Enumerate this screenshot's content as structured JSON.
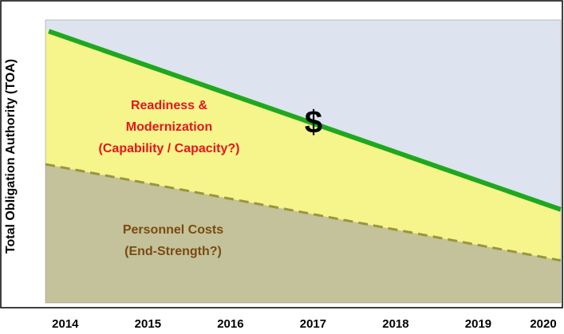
{
  "chart_data": {
    "type": "area",
    "y_label": "Total Obligation Authority (TOA)",
    "xlim": [
      2013.76,
      2020
    ],
    "xticks": [
      2014,
      2015,
      2016,
      2017,
      2018,
      2019,
      2020
    ],
    "ylim": [
      0,
      100
    ],
    "background_color": "#dde3ef",
    "series": [
      {
        "color": "#1fa81f",
        "fill": "#f5f58c",
        "style": "solid",
        "x": [
          2013.8,
          2020
        ],
        "values": [
          96,
          33
        ]
      },
      {
        "color": "#9a963a",
        "fill": "#c4c29a",
        "style": "dashed",
        "x": [
          2013.76,
          2020
        ],
        "values": [
          49,
          15
        ]
      }
    ],
    "annotations": [
      {
        "lines": [
          "Readiness &",
          "Modernization",
          "(Capability / Capacity?)"
        ],
        "color": "#e8141c"
      },
      {
        "lines": [
          "$"
        ],
        "color": "#000000"
      },
      {
        "lines": [
          "Personnel Costs",
          "(End-Strength?)"
        ],
        "color": "#7a4a12"
      }
    ]
  }
}
